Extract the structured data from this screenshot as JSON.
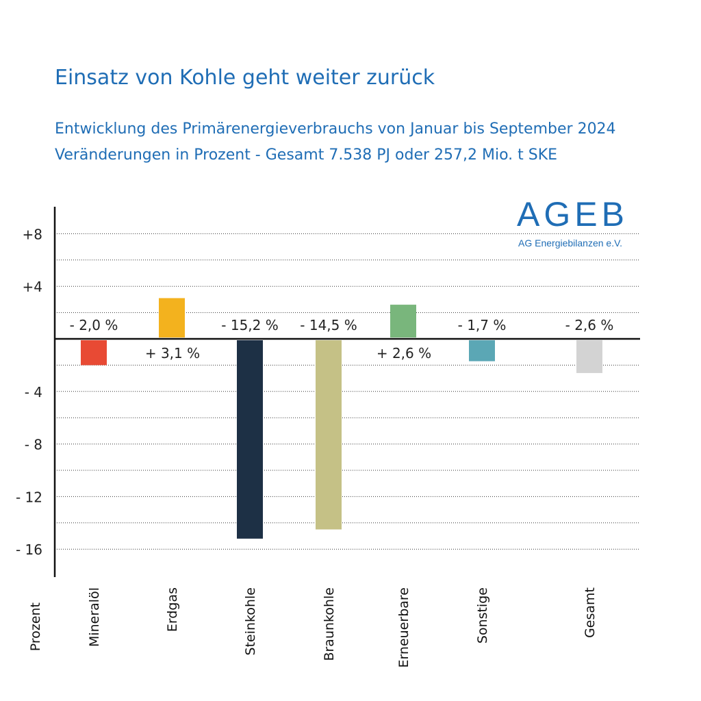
{
  "header": {
    "title": "Einsatz von Kohle geht weiter zurück",
    "subtitle_line1": "Entwicklung des Primärenergieverbrauchs von Januar bis September 2024",
    "subtitle_line2": "Veränderungen in Prozent - Gesamt 7.538 PJ oder 257,2 Mio. t SKE"
  },
  "logo": {
    "main": "AGEB",
    "sub": "AG Energiebilanzen e.V."
  },
  "chart_data": {
    "type": "bar",
    "title": "Einsatz von Kohle geht weiter zurück",
    "xlabel": "Prozent",
    "ylabel": "",
    "ylim": [
      -18,
      8
    ],
    "grid": true,
    "y_ticks": [
      {
        "value": 8,
        "label": "+8"
      },
      {
        "value": 4,
        "label": "+4"
      },
      {
        "value": -4,
        "label": "- 4"
      },
      {
        "value": -8,
        "label": "- 8"
      },
      {
        "value": -12,
        "label": "- 12"
      },
      {
        "value": -16,
        "label": "- 16"
      }
    ],
    "grid_lines": [
      8,
      6,
      4,
      2,
      -2,
      -4,
      -6,
      -8,
      -10,
      -12,
      -14,
      -16
    ],
    "categories": [
      "Mineralöl",
      "Erdgas",
      "Steinkohle",
      "Braunkohle",
      "Erneuerbare",
      "Sonstige",
      "Gesamt"
    ],
    "values": [
      -2.0,
      3.1,
      -15.2,
      -14.5,
      2.6,
      -1.7,
      -2.6
    ],
    "data_labels": [
      "- 2,0 %",
      "+ 3,1 %",
      "- 15,2 %",
      "- 14,5 %",
      "+ 2,6 %",
      "- 1,7 %",
      "- 2,6 %"
    ],
    "colors": [
      "#e84a34",
      "#f3b21e",
      "#1d3045",
      "#c5c186",
      "#79b67c",
      "#5ba7b5",
      "#d3d3d3"
    ]
  }
}
